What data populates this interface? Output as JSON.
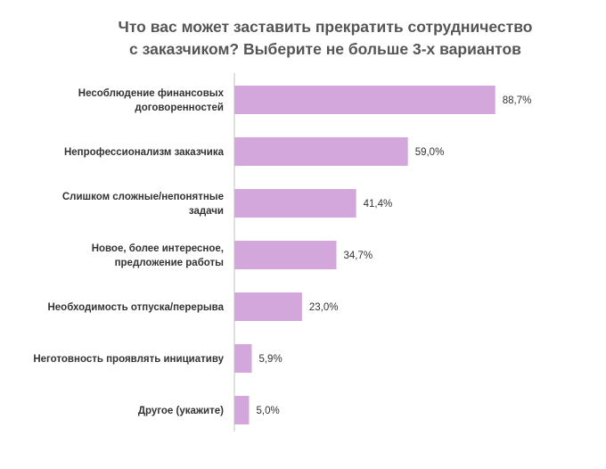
{
  "chart_data": {
    "type": "bar",
    "orientation": "horizontal",
    "title": "Что вас может заставить прекратить сотрудничество с заказчиком? Выберите не больше 3-х вариантов",
    "title_lines": [
      "Что вас может заставить прекратить сотрудничество",
      "с заказчиком? Выберите не больше 3-х вариантов"
    ],
    "categories": [
      "Несоблюдение финансовых договоренностей",
      "Непрофессионализм заказчика",
      "Слишком сложные/непонятные задачи",
      "Новое, более интересное, предложение работы",
      "Необходимость отпуска/перерыва",
      "Неготовность проявлять инициативу",
      "Другое (укажите)"
    ],
    "category_lines": [
      [
        "Несоблюдение финансовых",
        "договоренностей"
      ],
      [
        "Непрофессионализм  заказчика"
      ],
      [
        "Слишком сложные/непонятные",
        "задачи"
      ],
      [
        "Новое, более интересное,",
        "предложение работы"
      ],
      [
        "Необходимость отпуска/перерыва"
      ],
      [
        "Неготовность  проявлять  инициативу"
      ],
      [
        "Другое (укажите)"
      ]
    ],
    "values": [
      88.7,
      59.0,
      41.4,
      34.7,
      23.0,
      5.9,
      5.0
    ],
    "value_labels": [
      "88,7%",
      "59,0%",
      "41,4%",
      "34,7%",
      "23,0%",
      "5,9%",
      "5,0%"
    ],
    "xlim": [
      0,
      100
    ],
    "xlabel": "",
    "ylabel": "",
    "grid": false,
    "legend": "none",
    "bar_color": "#d4a7dc",
    "axis_color": "#bfbfbf",
    "text_color": "#333333",
    "title_color": "#555555"
  }
}
